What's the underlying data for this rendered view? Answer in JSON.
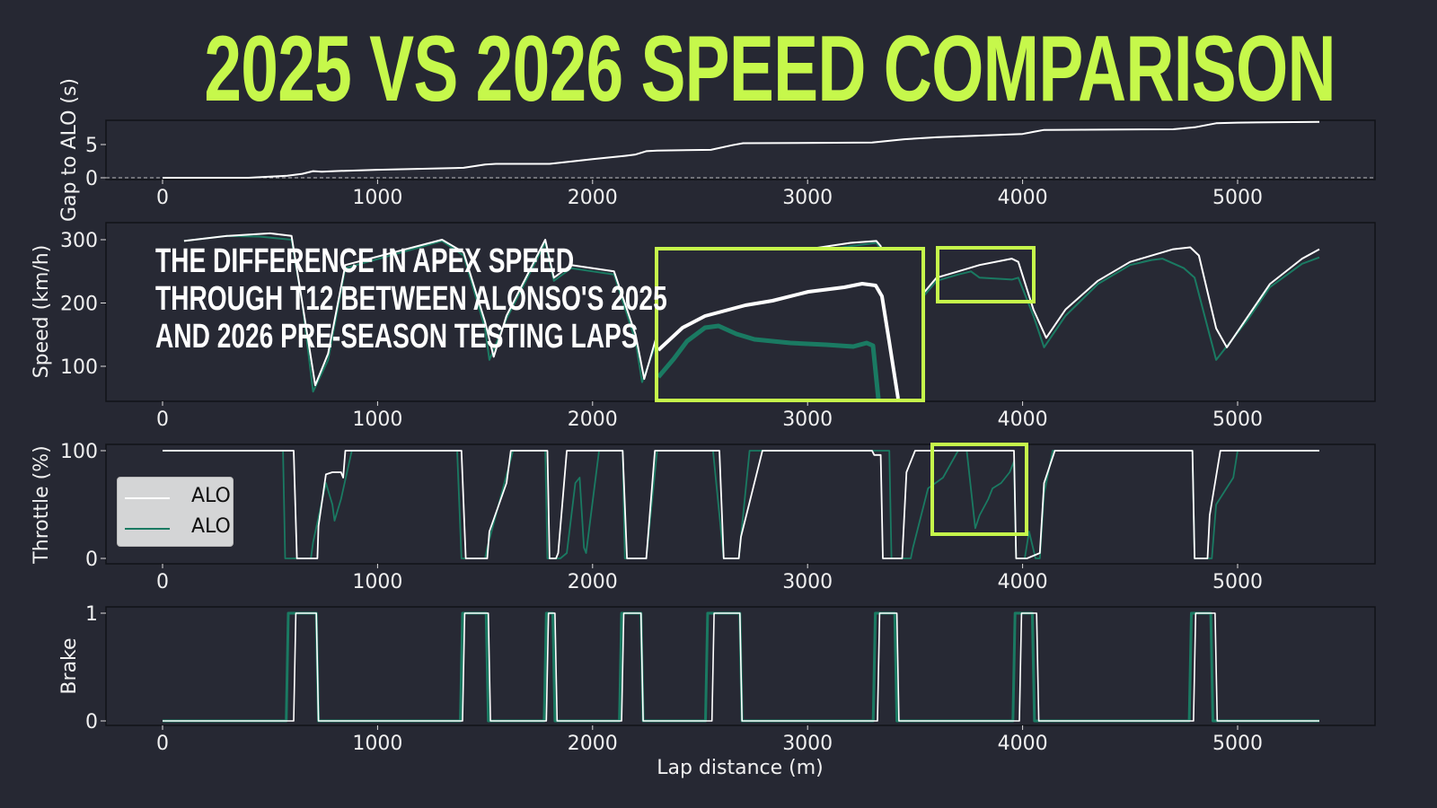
{
  "title": "2025 VS 2026 SPEED COMPARISON",
  "annotation": {
    "lines": [
      "THE DIFFERENCE IN APEX SPEED",
      "THROUGH T12 BETWEEN ALONSO'S 2025",
      "AND 2026 PRE-SEASON TESTING LAPS"
    ]
  },
  "legend": {
    "items": [
      {
        "label": "ALO",
        "color": "#ffffff"
      },
      {
        "label": "ALO",
        "color": "#1a7a62"
      }
    ]
  },
  "colors": {
    "background": "#262833",
    "title": "#c6f84b",
    "highlight_box": "#c6f84b",
    "series_2025": "#ffffff",
    "series_2026": "#1a7a62"
  },
  "x_axis": {
    "label": "Lap distance (m)",
    "ticks": [
      "0",
      "1000",
      "2000",
      "3000",
      "4000",
      "5000"
    ]
  },
  "chart_data": [
    {
      "type": "line",
      "panel": "gap",
      "title": "2025 VS 2026 SPEED COMPARISON",
      "xlabel": "Lap distance (m)",
      "ylabel": "Gap to ALO (s)",
      "yticks": [
        "0",
        "5"
      ],
      "ylim": [
        -0.3,
        8.8
      ],
      "xlim": [
        -270,
        5640
      ],
      "reference_line": {
        "y": 0,
        "style": "dashed"
      },
      "series": [
        {
          "name": "ALO",
          "color": "#ffffff",
          "x": [
            0,
            400,
            580,
            650,
            700,
            740,
            800,
            1000,
            1400,
            1500,
            1550,
            1800,
            2000,
            2150,
            2200,
            2250,
            2300,
            2550,
            2650,
            2700,
            3300,
            3450,
            3600,
            4000,
            4050,
            4100,
            4700,
            4800,
            4900,
            5000,
            5380
          ],
          "y": [
            0,
            0,
            0.3,
            0.6,
            1.0,
            0.9,
            1.0,
            1.2,
            1.5,
            2.0,
            2.1,
            2.1,
            2.8,
            3.3,
            3.5,
            4.0,
            4.1,
            4.2,
            4.9,
            5.2,
            5.3,
            5.8,
            6.1,
            6.6,
            6.9,
            7.2,
            7.3,
            7.6,
            8.2,
            8.3,
            8.4
          ]
        }
      ]
    },
    {
      "type": "line",
      "panel": "speed",
      "ylabel": "Speed (km/h)",
      "yticks": [
        "100",
        "200",
        "300"
      ],
      "ylim": [
        45,
        327
      ],
      "series": [
        {
          "name": "ALO",
          "color": "#ffffff",
          "x": [
            100,
            300,
            500,
            600,
            650,
            710,
            770,
            850,
            1300,
            1400,
            1500,
            1540,
            1600,
            1780,
            1820,
            1900,
            2100,
            2200,
            2240,
            2300,
            2500,
            2700,
            3000,
            3200,
            3320,
            3340,
            3420,
            3500,
            3600,
            3700,
            3800,
            3950,
            3980,
            4050,
            4110,
            4200,
            4350,
            4500,
            4700,
            4780,
            4820,
            4900,
            4950,
            5050,
            5150,
            5300,
            5380
          ],
          "y": [
            298,
            306,
            310,
            306,
            200,
            70,
            120,
            260,
            300,
            280,
            170,
            115,
            180,
            300,
            240,
            260,
            250,
            150,
            80,
            150,
            205,
            240,
            285,
            295,
            298,
            290,
            150,
            200,
            240,
            250,
            260,
            270,
            265,
            190,
            145,
            190,
            235,
            265,
            285,
            288,
            275,
            160,
            130,
            180,
            230,
            270,
            285
          ]
        },
        {
          "name": "ALO",
          "color": "#1a7a62",
          "x": [
            100,
            300,
            450,
            600,
            650,
            700,
            770,
            850,
            1300,
            1400,
            1500,
            1520,
            1600,
            1780,
            1820,
            1900,
            2100,
            2200,
            2230,
            2300,
            2500,
            2700,
            3000,
            3200,
            3320,
            3340,
            3420,
            3500,
            3600,
            3700,
            3760,
            3800,
            3950,
            3980,
            4050,
            4100,
            4200,
            4350,
            4500,
            4600,
            4650,
            4750,
            4800,
            4900,
            5050,
            5150,
            5300,
            5380
          ],
          "y": [
            298,
            306,
            305,
            300,
            200,
            60,
            110,
            255,
            298,
            275,
            160,
            110,
            175,
            295,
            235,
            255,
            245,
            140,
            75,
            140,
            200,
            235,
            280,
            290,
            295,
            285,
            145,
            195,
            235,
            245,
            250,
            240,
            237,
            240,
            180,
            130,
            180,
            230,
            260,
            268,
            270,
            255,
            240,
            110,
            175,
            225,
            262,
            272
          ]
        }
      ],
      "annotations": [
        {
          "type": "highlight_box",
          "x_range": [
            3600,
            4050
          ],
          "y_range": [
            204,
            265
          ],
          "label": "T12"
        },
        {
          "type": "inset_zoom",
          "region": "T12 apex speed close-up"
        }
      ]
    },
    {
      "type": "line",
      "panel": "throttle",
      "ylabel": "Throttle (%)",
      "yticks": [
        "0",
        "100"
      ],
      "ylim": [
        -5,
        105
      ],
      "series": [
        {
          "name": "ALO",
          "color": "#ffffff",
          "x": [
            0,
            610,
            625,
            720,
            725,
            760,
            790,
            830,
            840,
            850,
            1000,
            1390,
            1410,
            1510,
            1520,
            1600,
            1620,
            1790,
            1800,
            1830,
            1840,
            1880,
            1920,
            1960,
            2010,
            2100,
            2140,
            2160,
            2250,
            2290,
            2500,
            2590,
            2610,
            2680,
            2690,
            2790,
            3300,
            3310,
            3340,
            3350,
            3440,
            3460,
            3500,
            3580,
            3600,
            3960,
            3970,
            4000,
            4020,
            4080,
            4100,
            4150,
            4790,
            4800,
            4860,
            4870,
            4920,
            5380
          ],
          "y": [
            100,
            100,
            0,
            0,
            30,
            78,
            80,
            80,
            75,
            100,
            100,
            100,
            0,
            0,
            25,
            70,
            100,
            100,
            0,
            0,
            5,
            100,
            100,
            100,
            100,
            100,
            100,
            0,
            0,
            100,
            100,
            100,
            0,
            0,
            20,
            100,
            100,
            96,
            96,
            0,
            0,
            80,
            100,
            100,
            100,
            100,
            0,
            0,
            0,
            5,
            70,
            100,
            100,
            0,
            0,
            40,
            100,
            100
          ]
        },
        {
          "name": "ALO",
          "color": "#1a7a62",
          "x": [
            0,
            560,
            570,
            690,
            700,
            760,
            790,
            800,
            830,
            880,
            1370,
            1390,
            1500,
            1510,
            1590,
            1630,
            1780,
            1790,
            1850,
            1880,
            1920,
            1940,
            1960,
            1970,
            2030,
            2140,
            2150,
            2250,
            2300,
            2540,
            2560,
            2610,
            2680,
            2730,
            3380,
            3390,
            3480,
            3490,
            3560,
            3630,
            3700,
            3740,
            3780,
            3800,
            3840,
            3860,
            3900,
            3940,
            3960,
            3970,
            4010,
            4030,
            4060,
            4080,
            4100,
            4140,
            4150,
            4790,
            4800,
            4880,
            4900,
            4980,
            5000,
            5380
          ],
          "y": [
            100,
            100,
            0,
            0,
            15,
            70,
            50,
            35,
            55,
            100,
            100,
            0,
            0,
            10,
            70,
            100,
            100,
            0,
            0,
            5,
            70,
            75,
            10,
            5,
            100,
            100,
            0,
            0,
            100,
            100,
            100,
            0,
            0,
            100,
            100,
            0,
            0,
            10,
            65,
            75,
            100,
            100,
            28,
            40,
            55,
            65,
            70,
            80,
            90,
            0,
            0,
            25,
            0,
            0,
            60,
            100,
            100,
            100,
            0,
            0,
            50,
            75,
            100,
            100
          ]
        }
      ]
    },
    {
      "type": "line",
      "panel": "brake",
      "ylabel": "Brake",
      "yticks": [
        "0",
        "1"
      ],
      "ylim": [
        -0.05,
        1.05
      ],
      "series": [
        {
          "name": "ALO",
          "color": "#ffffff",
          "brake_zones_m": [
            [
              615,
              720
            ],
            [
              1400,
              1520
            ],
            [
              1790,
              1830
            ],
            [
              2140,
              2230
            ],
            [
              2560,
              2690
            ],
            [
              3330,
              3420
            ],
            [
              3990,
              4070
            ],
            [
              4800,
              4900
            ]
          ]
        },
        {
          "name": "ALO",
          "color": "#1a7a62",
          "brake_zones_m": [
            [
              580,
              720
            ],
            [
              1390,
              1510
            ],
            [
              1780,
              1820
            ],
            [
              2130,
              2230
            ],
            [
              2530,
              2690
            ],
            [
              3310,
              3410
            ],
            [
              3960,
              4050
            ],
            [
              4780,
              4880
            ]
          ]
        }
      ]
    }
  ]
}
